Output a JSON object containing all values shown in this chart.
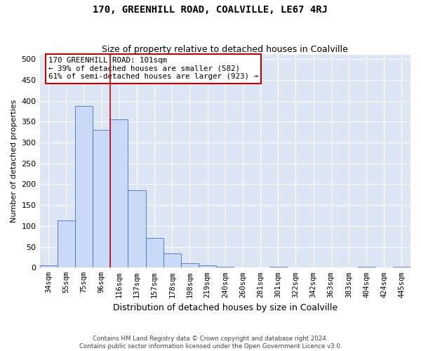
{
  "title": "170, GREENHILL ROAD, COALVILLE, LE67 4RJ",
  "subtitle": "Size of property relative to detached houses in Coalville",
  "xlabel": "Distribution of detached houses by size in Coalville",
  "ylabel": "Number of detached properties",
  "categories": [
    "34sqm",
    "55sqm",
    "75sqm",
    "96sqm",
    "116sqm",
    "137sqm",
    "157sqm",
    "178sqm",
    "198sqm",
    "219sqm",
    "240sqm",
    "260sqm",
    "281sqm",
    "301sqm",
    "322sqm",
    "342sqm",
    "363sqm",
    "383sqm",
    "404sqm",
    "424sqm",
    "445sqm"
  ],
  "bar_values": [
    5,
    113,
    388,
    330,
    355,
    185,
    72,
    35,
    10,
    5,
    2,
    0,
    0,
    2,
    0,
    0,
    0,
    0,
    2,
    0,
    2
  ],
  "bar_color": "#c9daf8",
  "bar_edge_color": "#4472c4",
  "vline_x_index": 4,
  "vline_color": "#cc0000",
  "annotation_line1": "170 GREENHILL ROAD: 101sqm",
  "annotation_line2": "← 39% of detached houses are smaller (582)",
  "annotation_line3": "61% of semi-detached houses are larger (923) →",
  "annotation_box_color": "#ffffff",
  "annotation_box_edge": "#cc0000",
  "ylim": [
    0,
    510
  ],
  "yticks": [
    0,
    50,
    100,
    150,
    200,
    250,
    300,
    350,
    400,
    450,
    500
  ],
  "bg_color": "#dce6f5",
  "footer_line1": "Contains HM Land Registry data © Crown copyright and database right 2024.",
  "footer_line2": "Contains public sector information licensed under the Open Government Licence v3.0.",
  "title_fontsize": 10,
  "subtitle_fontsize": 9,
  "ylabel_fontsize": 8,
  "xlabel_fontsize": 9
}
